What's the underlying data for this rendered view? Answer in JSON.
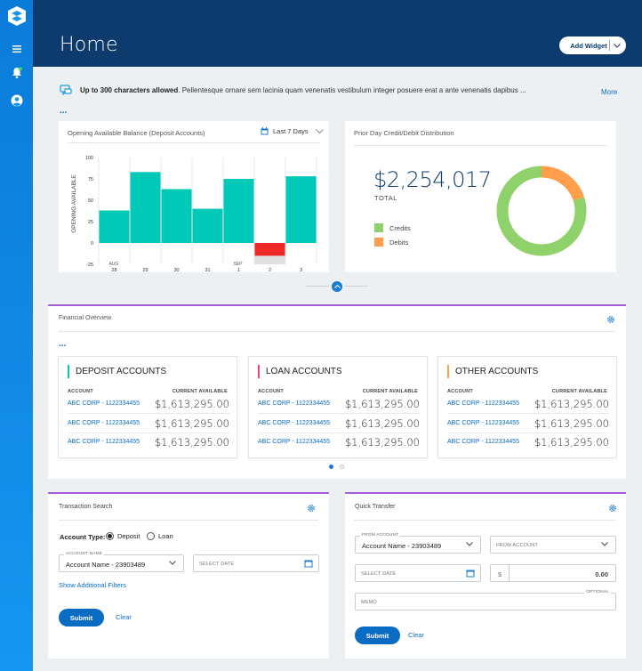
{
  "header": {
    "title": "Home",
    "add_widget_label": "Add Widget"
  },
  "announcement": {
    "bold": "Up to 300 characters allowed",
    "text": ". Pellentesque ornare sem lacinia quam venenatis vestibulum integer posuere erat a ante venenatis dapibus ...",
    "more": "More",
    "dots": "..."
  },
  "balance_widget": {
    "title": "Opening Available Balance (Deposit Accounts)",
    "range": "Last 7 Days"
  },
  "chart_data": {
    "type": "bar",
    "title": "",
    "ylabel": "OPENING AVAILABLE",
    "categories": [
      "28",
      "29",
      "30",
      "31",
      "1",
      "2",
      "3"
    ],
    "month_labels": [
      "AUG",
      "SEP"
    ],
    "values": [
      38,
      83,
      63,
      40,
      75,
      -15,
      78
    ],
    "ylim": [
      -25,
      100
    ],
    "yticks": [
      "100",
      "75",
      "50",
      "25",
      "0",
      "-25"
    ],
    "ytick_values": [
      100,
      75,
      50,
      25,
      0,
      -25
    ],
    "colors": {
      "positive": "#00c9b7",
      "negative": "#ee2727",
      "negative_bg": "#e0e0e0"
    }
  },
  "distribution_widget": {
    "title": "Prior Day Credit/Debit Distribution",
    "amount": "$2,254,017",
    "total_label": "TOTAL",
    "legend": [
      {
        "label": "Credits",
        "color": "#8fd16a"
      },
      {
        "label": "Debits",
        "color": "#ff9f4d"
      }
    ],
    "donut": {
      "credits_fraction": 0.8,
      "debits_fraction": 0.2
    }
  },
  "financial_overview": {
    "title": "Financial Overview",
    "dots": "...",
    "col_account": "ACCOUNT",
    "col_available": "CURRENT AVAILABLE",
    "groups": [
      {
        "title": "DEPOSIT ACCOUNTS",
        "color": "#00c9b7",
        "rows": [
          {
            "name": "ABC CORP - 1122334455",
            "amount": "$1,613,295.00"
          },
          {
            "name": "ABC CORP - 1122334455",
            "amount": "$1,613,295.00"
          },
          {
            "name": "ABC CORP - 1122334455",
            "amount": "$1,613,295.00"
          }
        ]
      },
      {
        "title": "LOAN ACCOUNTS",
        "color": "#f0467a",
        "rows": [
          {
            "name": "ABC CORP - 1122334455",
            "amount": "$1,613,295.00"
          },
          {
            "name": "ABC CORP - 1122334455",
            "amount": "$1,613,295.00"
          },
          {
            "name": "ABC CORP - 1122334455",
            "amount": "$1,613,295.00"
          }
        ]
      },
      {
        "title": "OTHER ACCOUNTS",
        "color": "#ff9f4d",
        "rows": [
          {
            "name": "ABC CORP - 1122334455",
            "amount": "$1,613,295.00"
          },
          {
            "name": "ABC CORP - 1122334455",
            "amount": "$1,613,295.00"
          },
          {
            "name": "ABC CORP - 1122334455",
            "amount": "$1,613,295.00"
          }
        ]
      }
    ]
  },
  "transaction_search": {
    "title": "Transaction Search",
    "account_type_label": "Account Type:",
    "options": [
      "Deposit",
      "Loan"
    ],
    "account_name_label": "ACCOUNT NAME",
    "account_name_value": "Account Name - 23903489",
    "select_date": "SELECT DATE",
    "filters_link": "Show Additional Filters",
    "submit": "Submit",
    "clear": "Clear"
  },
  "quick_transfer": {
    "title": "Quick Transfer",
    "from_account_label": "FROM ACCOUNT",
    "from_account_value": "Account Name - 23903489",
    "to_account_placeholder": "FROM ACCOUNT",
    "select_date": "SELECT DATE",
    "currency": "$",
    "amount": "0.00",
    "memo": "MEMO",
    "optional": "OPTIONAL",
    "submit": "Submit",
    "clear": "Clear"
  }
}
